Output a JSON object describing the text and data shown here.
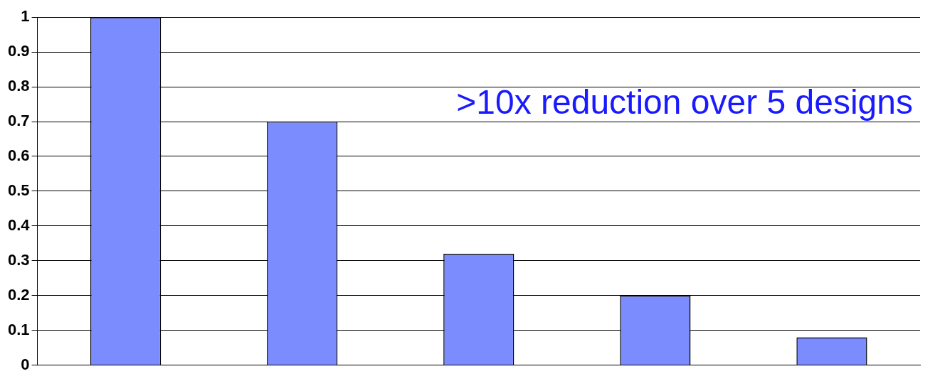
{
  "chart_data": {
    "type": "bar",
    "categories": [
      null,
      null,
      null,
      null,
      null
    ],
    "values": [
      1,
      0.7,
      0.32,
      0.2,
      0.08
    ],
    "color": "#7b8cff",
    "ylim": [
      0,
      1
    ],
    "yticks": [
      0,
      0.1,
      0.2,
      0.3,
      0.4,
      0.5,
      0.6,
      0.7,
      0.8,
      0.9,
      1
    ],
    "grid": "y",
    "legend": false,
    "annotations": [
      ">10x reduction over 5 designs"
    ]
  }
}
